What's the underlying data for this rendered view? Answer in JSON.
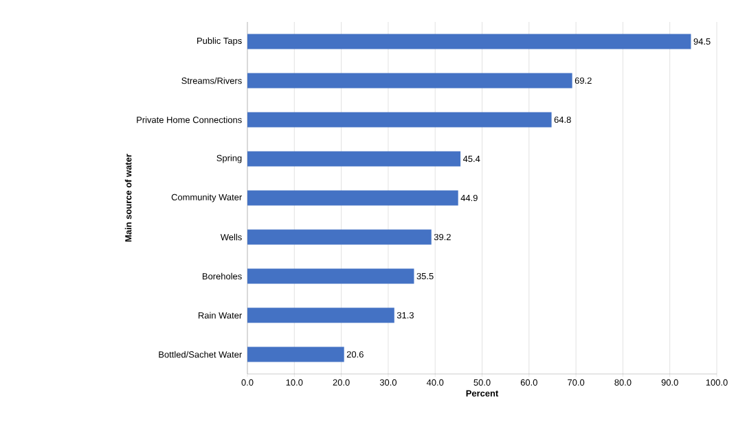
{
  "chart_data": {
    "type": "bar",
    "orientation": "horizontal",
    "xlabel": "Percent",
    "ylabel": "Main source of water",
    "categories": [
      "Public Taps",
      "Streams/Rivers",
      "Private Home Connections",
      "Spring",
      "Community Water",
      "Wells",
      "Boreholes",
      "Rain Water",
      "Bottled/Sachet Water"
    ],
    "values": [
      94.5,
      69.2,
      64.8,
      45.4,
      44.9,
      39.2,
      35.5,
      31.3,
      20.6
    ],
    "color": "#4472c4",
    "data_labels": true,
    "grid": "x",
    "xlim": [
      0,
      100
    ],
    "xticks": [
      {
        "value": 0,
        "label": "0.0"
      },
      {
        "value": 10,
        "label": "10.0"
      },
      {
        "value": 20,
        "label": "20.0"
      },
      {
        "value": 30,
        "label": "30.0"
      },
      {
        "value": 40,
        "label": "40.0"
      },
      {
        "value": 50,
        "label": "50.0"
      },
      {
        "value": 60,
        "label": "60.0"
      },
      {
        "value": 70,
        "label": "70.0"
      },
      {
        "value": 80,
        "label": "80.0"
      },
      {
        "value": 90,
        "label": "90.0"
      },
      {
        "value": 100,
        "label": "100.0"
      }
    ]
  }
}
